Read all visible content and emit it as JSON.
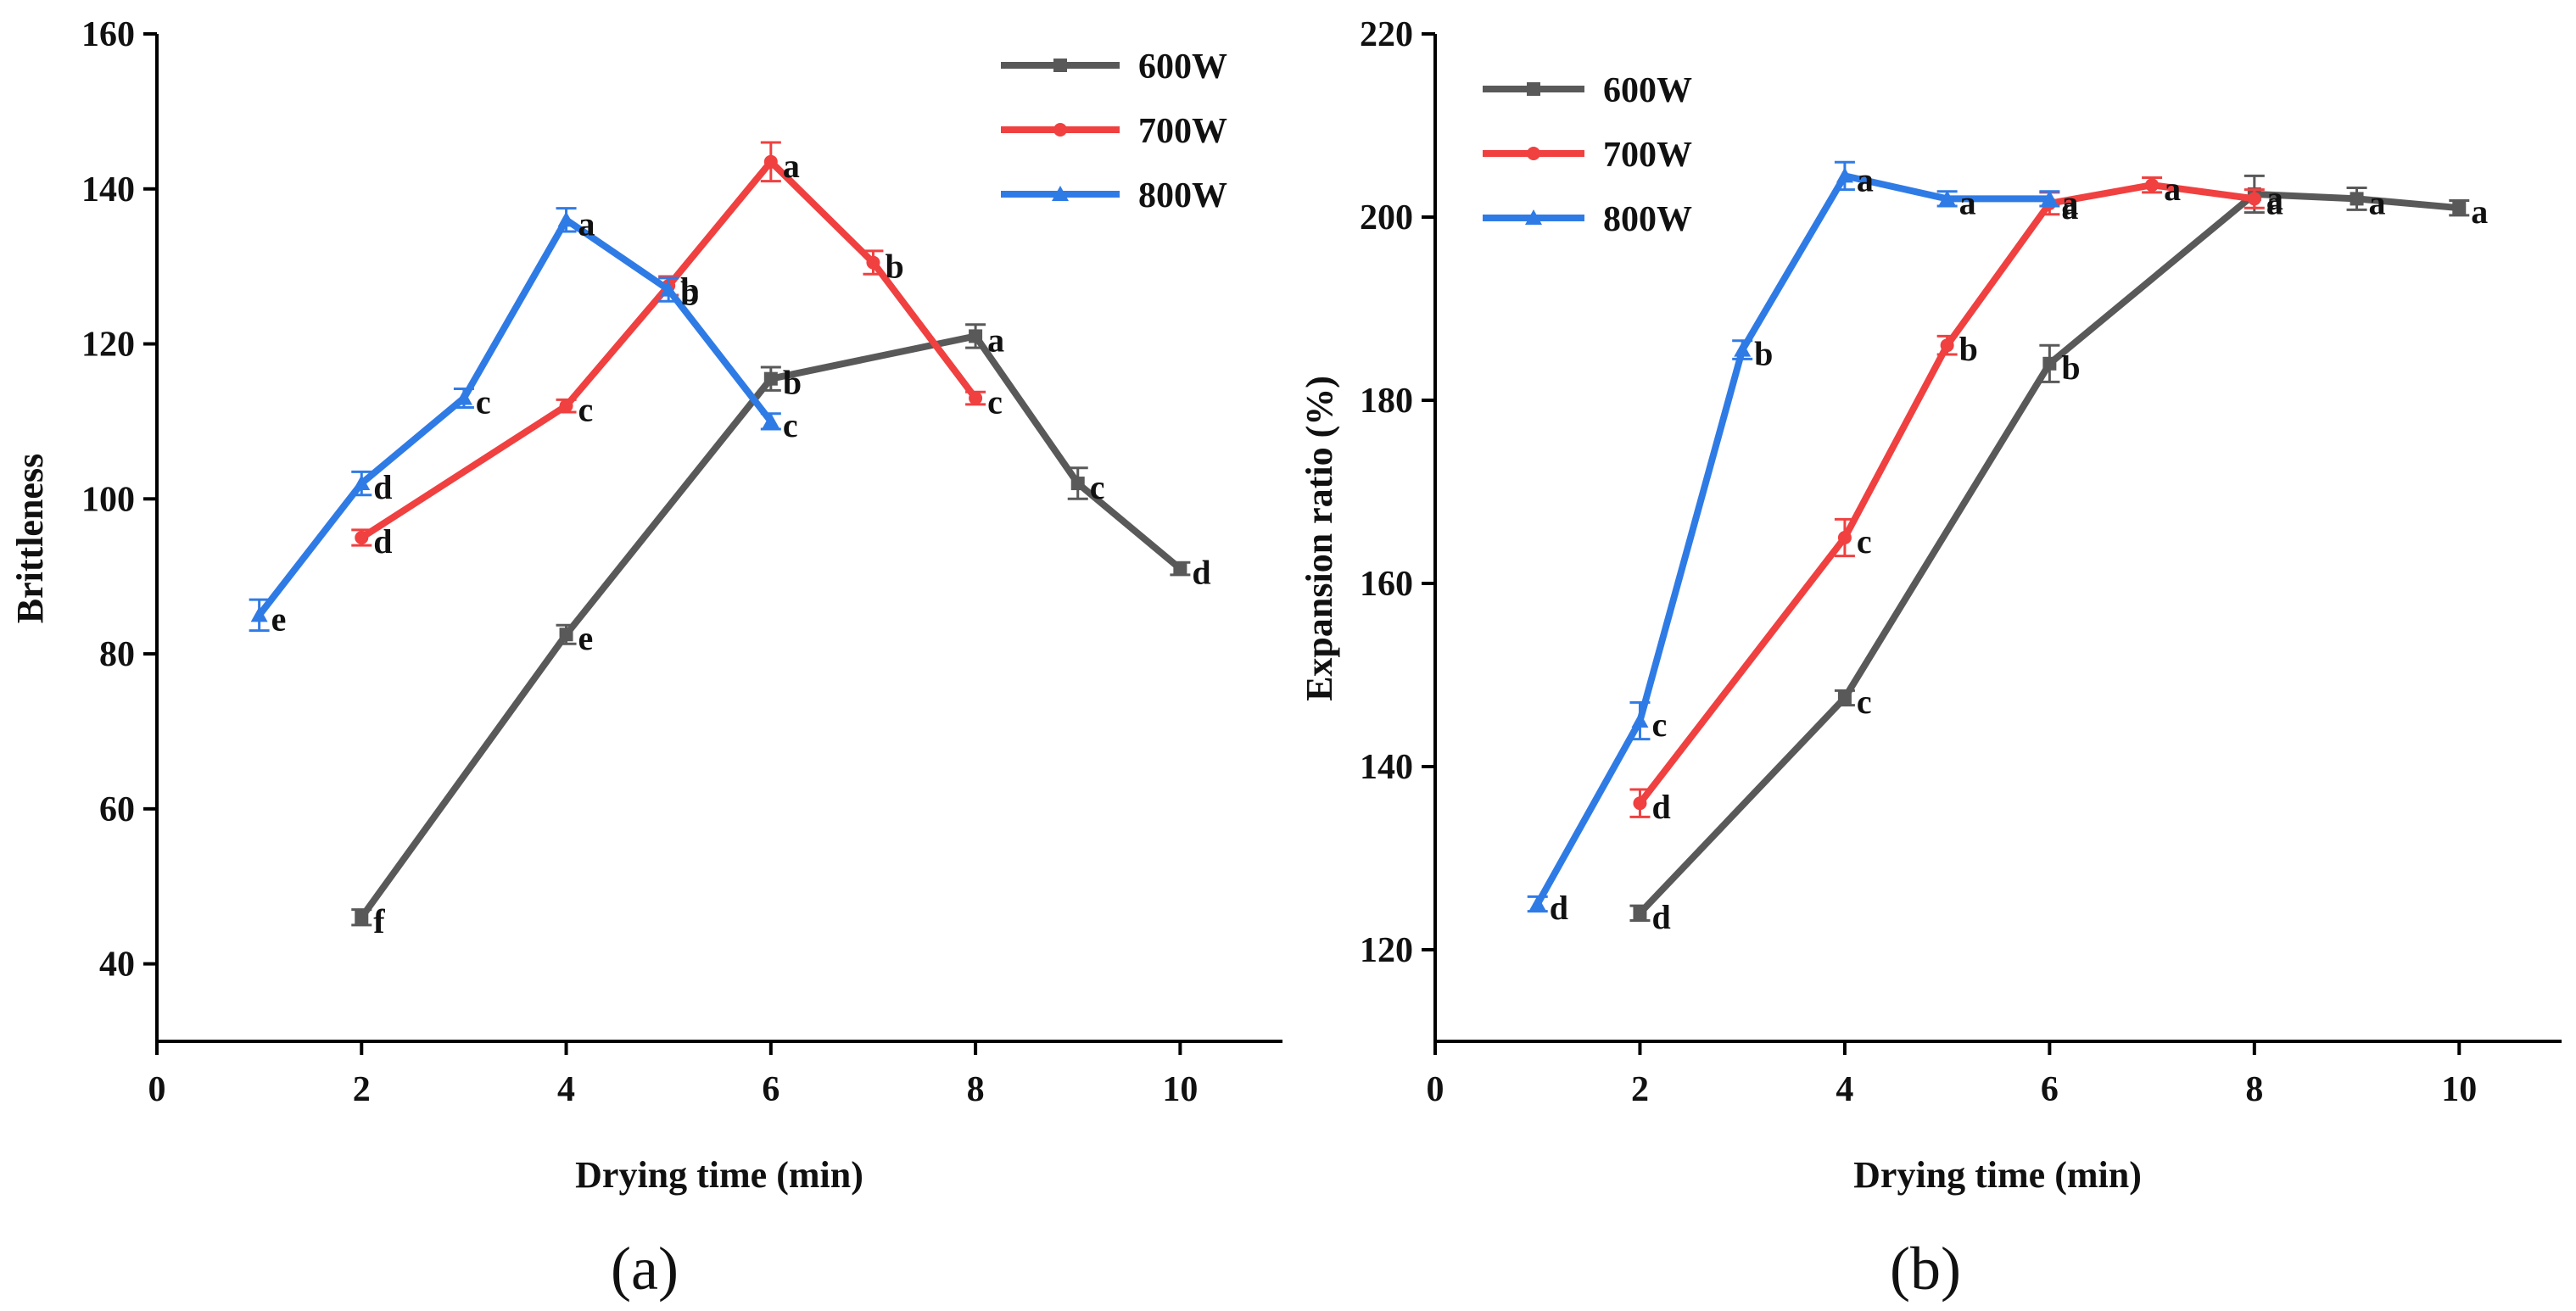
{
  "chart_data": [
    {
      "type": "line",
      "panel_label": "(a)",
      "xlabel": "Drying time (min)",
      "ylabel": "Brittleness",
      "xlim": [
        0,
        11
      ],
      "ylim": [
        30,
        160
      ],
      "xticks": [
        0,
        2,
        4,
        6,
        8,
        10
      ],
      "yticks": [
        40,
        60,
        80,
        100,
        120,
        140,
        160
      ],
      "legend_position": "top-right",
      "series": [
        {
          "name": "600W",
          "color": "#595959",
          "marker": "square",
          "x": [
            2,
            4,
            6,
            8,
            9,
            10
          ],
          "y": [
            46,
            82.5,
            115.5,
            121,
            102,
            91
          ],
          "err": [
            1,
            1.2,
            1.5,
            1.5,
            2,
            0.8
          ],
          "labels": [
            "f",
            "e",
            "b",
            "a",
            "c",
            "d"
          ]
        },
        {
          "name": "700W",
          "color": "#f04040",
          "marker": "circle",
          "x": [
            2,
            4,
            5,
            6,
            7,
            8
          ],
          "y": [
            95,
            112,
            127.5,
            143.5,
            130.5,
            113
          ],
          "err": [
            1,
            0.8,
            1.2,
            2.5,
            1.5,
            0.8
          ],
          "labels": [
            "d",
            "c",
            "b",
            "a",
            "b",
            "c"
          ]
        },
        {
          "name": "800W",
          "color": "#2f7be6",
          "marker": "triangle",
          "x": [
            1,
            2,
            3,
            4,
            5,
            6
          ],
          "y": [
            85,
            102,
            113,
            136,
            127,
            110
          ],
          "err": [
            2,
            1.5,
            1.2,
            1.5,
            1.5,
            1
          ],
          "labels": [
            "e",
            "d",
            "c",
            "a",
            "b",
            "c"
          ]
        }
      ]
    },
    {
      "type": "line",
      "panel_label": "(b)",
      "xlabel": "Drying time (min)",
      "ylabel": "Expansion ratio (%)",
      "xlim": [
        0,
        11
      ],
      "ylim": [
        110,
        220
      ],
      "xticks": [
        0,
        2,
        4,
        6,
        8,
        10
      ],
      "yticks": [
        120,
        140,
        160,
        180,
        200,
        220
      ],
      "legend_position": "top-left",
      "series": [
        {
          "name": "600W",
          "color": "#595959",
          "marker": "square",
          "x": [
            2,
            4,
            6,
            8,
            9,
            10
          ],
          "y": [
            124,
            147.5,
            184,
            202.5,
            202,
            201
          ],
          "err": [
            0.8,
            0.8,
            2,
            2,
            1.2,
            0.8
          ],
          "labels": [
            "d",
            "c",
            "b",
            "a",
            "a",
            "a"
          ]
        },
        {
          "name": "700W",
          "color": "#f04040",
          "marker": "circle",
          "x": [
            2,
            4,
            5,
            6,
            7,
            8
          ],
          "y": [
            136,
            165,
            186,
            201.5,
            203.5,
            202
          ],
          "err": [
            1.5,
            2,
            1,
            1.2,
            0.8,
            1
          ],
          "labels": [
            "d",
            "c",
            "b",
            "a",
            "a",
            "a"
          ]
        },
        {
          "name": "800W",
          "color": "#2f7be6",
          "marker": "triangle",
          "x": [
            1,
            2,
            3,
            4,
            5,
            6
          ],
          "y": [
            125,
            145,
            185.5,
            204.5,
            202,
            202
          ],
          "err": [
            0.8,
            2,
            1,
            1.5,
            0.8,
            0.8
          ],
          "labels": [
            "d",
            "c",
            "b",
            "a",
            "a",
            "a"
          ]
        }
      ]
    }
  ]
}
